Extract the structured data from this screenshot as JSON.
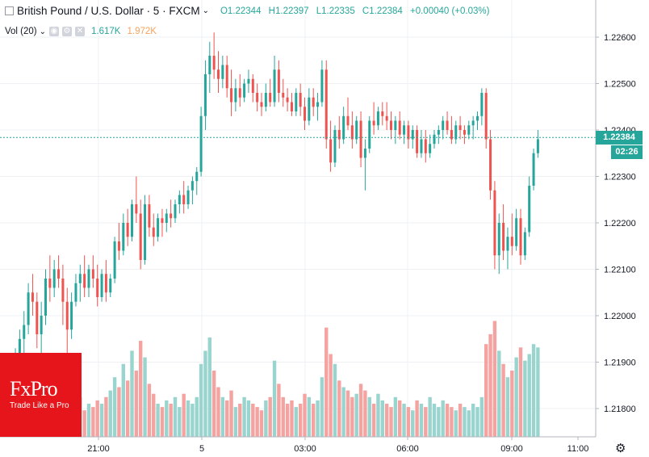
{
  "header": {
    "symbol": "British Pound / U.S. Dollar · 5 · FXCM",
    "open": "O1.22344",
    "high": "H1.22397",
    "low": "L1.22335",
    "close": "C1.22384",
    "change": "+0.00040 (+0.03%)"
  },
  "volume_legend": {
    "label": "Vol (20)",
    "value1": "1.617K",
    "value2": "1.972K"
  },
  "logo": {
    "name": "FxPro",
    "tagline": "Trade Like a Pro"
  },
  "price_marker": {
    "price": "1.22384",
    "countdown": "02:26"
  },
  "colors": {
    "up": "#26a69a",
    "down": "#ef5350",
    "vol_up": "#9ad4ce",
    "vol_down": "#f5a3a1",
    "brand": "#e5151b"
  },
  "chart_data": {
    "type": "candlestick",
    "x_ticks": [
      "21:00",
      "5",
      "03:00",
      "06:00",
      "09:00",
      "11:00"
    ],
    "y_ticks": [
      "1.22600",
      "1.22500",
      "1.22400",
      "1.22300",
      "1.22200",
      "1.22100",
      "1.22000",
      "1.21900",
      "1.21800"
    ],
    "ylim": [
      1.2174,
      1.2263
    ],
    "last_price": 1.22384,
    "candles": [
      [
        1.2188,
        1.2191,
        1.2183,
        1.2186
      ],
      [
        1.2186,
        1.2188,
        1.2181,
        1.2183
      ],
      [
        1.2183,
        1.2187,
        1.2179,
        1.2185
      ],
      [
        1.2185,
        1.2193,
        1.2184,
        1.2191
      ],
      [
        1.2191,
        1.2197,
        1.2189,
        1.2195
      ],
      [
        1.2195,
        1.2201,
        1.2192,
        1.2198
      ],
      [
        1.2198,
        1.2207,
        1.2196,
        1.2205
      ],
      [
        1.2205,
        1.2209,
        1.22,
        1.2203
      ],
      [
        1.2203,
        1.2205,
        1.2193,
        1.2196
      ],
      [
        1.2196,
        1.2203,
        1.2192,
        1.22
      ],
      [
        1.22,
        1.221,
        1.2198,
        1.2208
      ],
      [
        1.2208,
        1.2213,
        1.2203,
        1.2206
      ],
      [
        1.2206,
        1.2212,
        1.2204,
        1.221
      ],
      [
        1.221,
        1.2213,
        1.2206,
        1.2208
      ],
      [
        1.2208,
        1.2211,
        1.2198,
        1.2203
      ],
      [
        1.2203,
        1.2206,
        1.2192,
        1.2197
      ],
      [
        1.2197,
        1.2205,
        1.2195,
        1.2203
      ],
      [
        1.2203,
        1.2209,
        1.2202,
        1.2207
      ],
      [
        1.2207,
        1.2211,
        1.2203,
        1.2209
      ],
      [
        1.2209,
        1.2213,
        1.2204,
        1.2206
      ],
      [
        1.2206,
        1.2211,
        1.2204,
        1.221
      ],
      [
        1.221,
        1.2213,
        1.2206,
        1.2208
      ],
      [
        1.2208,
        1.2211,
        1.2202,
        1.2204
      ],
      [
        1.2204,
        1.221,
        1.2203,
        1.2209
      ],
      [
        1.2209,
        1.2212,
        1.2203,
        1.2205
      ],
      [
        1.2205,
        1.2209,
        1.2204,
        1.2208
      ],
      [
        1.2208,
        1.2217,
        1.2207,
        1.2216
      ],
      [
        1.2216,
        1.222,
        1.2212,
        1.2214
      ],
      [
        1.2214,
        1.2222,
        1.2213,
        1.222
      ],
      [
        1.222,
        1.2223,
        1.2215,
        1.2217
      ],
      [
        1.2217,
        1.2225,
        1.2216,
        1.2224
      ],
      [
        1.2224,
        1.223,
        1.222,
        1.2222
      ],
      [
        1.2222,
        1.2225,
        1.221,
        1.2212
      ],
      [
        1.2212,
        1.2226,
        1.2211,
        1.2224
      ],
      [
        1.2224,
        1.2226,
        1.2217,
        1.2219
      ],
      [
        1.2219,
        1.2222,
        1.2215,
        1.2217
      ],
      [
        1.2217,
        1.2222,
        1.2216,
        1.2221
      ],
      [
        1.2221,
        1.2223,
        1.2217,
        1.222
      ],
      [
        1.222,
        1.2223,
        1.2218,
        1.2222
      ],
      [
        1.2222,
        1.2225,
        1.2219,
        1.2221
      ],
      [
        1.2221,
        1.2225,
        1.222,
        1.2224
      ],
      [
        1.2224,
        1.2227,
        1.2222,
        1.2226
      ],
      [
        1.2226,
        1.2229,
        1.2222,
        1.2224
      ],
      [
        1.2224,
        1.2228,
        1.2223,
        1.2227
      ],
      [
        1.2227,
        1.223,
        1.2224,
        1.2229
      ],
      [
        1.2229,
        1.2232,
        1.2226,
        1.2231
      ],
      [
        1.2231,
        1.2245,
        1.223,
        1.2243
      ],
      [
        1.2243,
        1.2255,
        1.224,
        1.2252
      ],
      [
        1.2252,
        1.2259,
        1.2248,
        1.2256
      ],
      [
        1.2256,
        1.2261,
        1.2251,
        1.2253
      ],
      [
        1.2253,
        1.2257,
        1.2248,
        1.2251
      ],
      [
        1.2251,
        1.2256,
        1.2249,
        1.2254
      ],
      [
        1.2254,
        1.2256,
        1.2247,
        1.2249
      ],
      [
        1.2249,
        1.2253,
        1.2243,
        1.2246
      ],
      [
        1.2246,
        1.2251,
        1.2244,
        1.2249
      ],
      [
        1.2249,
        1.2252,
        1.2245,
        1.2247
      ],
      [
        1.2247,
        1.2251,
        1.2246,
        1.225
      ],
      [
        1.225,
        1.2253,
        1.2248,
        1.2251
      ],
      [
        1.2251,
        1.2252,
        1.2246,
        1.2248
      ],
      [
        1.2248,
        1.225,
        1.2244,
        1.2246
      ],
      [
        1.2246,
        1.2248,
        1.2243,
        1.2245
      ],
      [
        1.2245,
        1.225,
        1.2244,
        1.2248
      ],
      [
        1.2248,
        1.2251,
        1.2245,
        1.2246
      ],
      [
        1.2246,
        1.2256,
        1.2245,
        1.2253
      ],
      [
        1.2253,
        1.2255,
        1.2246,
        1.2248
      ],
      [
        1.2248,
        1.2251,
        1.2245,
        1.2247
      ],
      [
        1.2247,
        1.2249,
        1.2244,
        1.2246
      ],
      [
        1.2246,
        1.2248,
        1.2243,
        1.2244
      ],
      [
        1.2244,
        1.2249,
        1.2243,
        1.2248
      ],
      [
        1.2248,
        1.225,
        1.2243,
        1.2245
      ],
      [
        1.2245,
        1.2247,
        1.224,
        1.2242
      ],
      [
        1.2242,
        1.2249,
        1.2241,
        1.2247
      ],
      [
        1.2247,
        1.2249,
        1.2243,
        1.2245
      ],
      [
        1.2245,
        1.2248,
        1.2242,
        1.2246
      ],
      [
        1.2246,
        1.2255,
        1.2245,
        1.2253
      ],
      [
        1.2253,
        1.2255,
        1.2236,
        1.2238
      ],
      [
        1.2238,
        1.2242,
        1.2231,
        1.2233
      ],
      [
        1.2233,
        1.2241,
        1.2232,
        1.224
      ],
      [
        1.224,
        1.2243,
        1.2236,
        1.2238
      ],
      [
        1.2238,
        1.2245,
        1.2237,
        1.2243
      ],
      [
        1.2243,
        1.2247,
        1.224,
        1.2241
      ],
      [
        1.2241,
        1.2244,
        1.2236,
        1.2238
      ],
      [
        1.2238,
        1.2243,
        1.2237,
        1.2242
      ],
      [
        1.2242,
        1.2244,
        1.2232,
        1.2234
      ],
      [
        1.2234,
        1.2238,
        1.2227,
        1.2236
      ],
      [
        1.2236,
        1.2243,
        1.2235,
        1.2242
      ],
      [
        1.2242,
        1.2246,
        1.2239,
        1.2241
      ],
      [
        1.2241,
        1.2245,
        1.224,
        1.2244
      ],
      [
        1.2244,
        1.2246,
        1.2241,
        1.2243
      ],
      [
        1.2243,
        1.2246,
        1.224,
        1.2242
      ],
      [
        1.2242,
        1.2244,
        1.2238,
        1.224
      ],
      [
        1.224,
        1.2243,
        1.2237,
        1.2242
      ],
      [
        1.2242,
        1.2244,
        1.2238,
        1.2239
      ],
      [
        1.2239,
        1.2242,
        1.2237,
        1.2241
      ],
      [
        1.2241,
        1.2242,
        1.2236,
        1.2238
      ],
      [
        1.2238,
        1.2241,
        1.2236,
        1.224
      ],
      [
        1.224,
        1.2241,
        1.2234,
        1.2235
      ],
      [
        1.2235,
        1.224,
        1.2234,
        1.2238
      ],
      [
        1.2238,
        1.224,
        1.2233,
        1.2235
      ],
      [
        1.2235,
        1.2239,
        1.2234,
        1.2237
      ],
      [
        1.2237,
        1.224,
        1.2236,
        1.2239
      ],
      [
        1.2239,
        1.2241,
        1.2237,
        1.224
      ],
      [
        1.224,
        1.2243,
        1.2238,
        1.2242
      ],
      [
        1.2242,
        1.2244,
        1.2239,
        1.224
      ],
      [
        1.224,
        1.2243,
        1.2237,
        1.2238
      ],
      [
        1.2238,
        1.2242,
        1.2237,
        1.2241
      ],
      [
        1.2241,
        1.2243,
        1.2238,
        1.224
      ],
      [
        1.224,
        1.2241,
        1.2237,
        1.2239
      ],
      [
        1.2239,
        1.2242,
        1.2238,
        1.2241
      ],
      [
        1.2241,
        1.2243,
        1.2238,
        1.2242
      ],
      [
        1.2242,
        1.2244,
        1.224,
        1.2243
      ],
      [
        1.2243,
        1.2249,
        1.2241,
        1.2248
      ],
      [
        1.2248,
        1.2249,
        1.2236,
        1.2238
      ],
      [
        1.2238,
        1.224,
        1.2225,
        1.2227
      ],
      [
        1.2227,
        1.2229,
        1.221,
        1.2213
      ],
      [
        1.2213,
        1.2222,
        1.2209,
        1.222
      ],
      [
        1.222,
        1.2224,
        1.2212,
        1.2214
      ],
      [
        1.2214,
        1.2219,
        1.221,
        1.2217
      ],
      [
        1.2217,
        1.2222,
        1.2213,
        1.2215
      ],
      [
        1.2215,
        1.2223,
        1.2214,
        1.2221
      ],
      [
        1.2221,
        1.2223,
        1.2211,
        1.2213
      ],
      [
        1.2213,
        1.2219,
        1.2212,
        1.2218
      ],
      [
        1.2218,
        1.223,
        1.2217,
        1.2228
      ],
      [
        1.2228,
        1.2236,
        1.2227,
        1.2235
      ],
      [
        1.2235,
        1.224,
        1.2234,
        1.2238
      ]
    ],
    "volumes": [
      [
        11,
        0
      ],
      [
        9,
        1
      ],
      [
        8,
        0
      ],
      [
        10,
        1
      ],
      [
        12,
        1
      ],
      [
        9,
        0
      ],
      [
        13,
        1
      ],
      [
        8,
        0
      ],
      [
        14,
        0
      ],
      [
        11,
        1
      ],
      [
        12,
        1
      ],
      [
        10,
        0
      ],
      [
        9,
        1
      ],
      [
        11,
        0
      ],
      [
        13,
        0
      ],
      [
        12,
        0
      ],
      [
        10,
        1
      ],
      [
        9,
        1
      ],
      [
        12,
        1
      ],
      [
        8,
        0
      ],
      [
        10,
        1
      ],
      [
        9,
        0
      ],
      [
        11,
        0
      ],
      [
        10,
        1
      ],
      [
        12,
        0
      ],
      [
        14,
        1
      ],
      [
        18,
        1
      ],
      [
        15,
        0
      ],
      [
        22,
        1
      ],
      [
        17,
        0
      ],
      [
        26,
        1
      ],
      [
        20,
        0
      ],
      [
        29,
        0
      ],
      [
        24,
        1
      ],
      [
        16,
        0
      ],
      [
        13,
        0
      ],
      [
        10,
        1
      ],
      [
        9,
        0
      ],
      [
        11,
        1
      ],
      [
        10,
        0
      ],
      [
        12,
        1
      ],
      [
        9,
        1
      ],
      [
        13,
        0
      ],
      [
        11,
        1
      ],
      [
        10,
        1
      ],
      [
        12,
        1
      ],
      [
        22,
        1
      ],
      [
        26,
        1
      ],
      [
        30,
        1
      ],
      [
        20,
        0
      ],
      [
        15,
        0
      ],
      [
        12,
        1
      ],
      [
        11,
        0
      ],
      [
        14,
        0
      ],
      [
        9,
        1
      ],
      [
        10,
        0
      ],
      [
        12,
        1
      ],
      [
        11,
        1
      ],
      [
        10,
        0
      ],
      [
        9,
        0
      ],
      [
        8,
        0
      ],
      [
        11,
        1
      ],
      [
        12,
        0
      ],
      [
        23,
        1
      ],
      [
        16,
        0
      ],
      [
        12,
        0
      ],
      [
        10,
        0
      ],
      [
        11,
        0
      ],
      [
        9,
        1
      ],
      [
        10,
        0
      ],
      [
        13,
        0
      ],
      [
        12,
        1
      ],
      [
        10,
        0
      ],
      [
        11,
        1
      ],
      [
        18,
        1
      ],
      [
        33,
        0
      ],
      [
        25,
        0
      ],
      [
        22,
        1
      ],
      [
        17,
        0
      ],
      [
        15,
        1
      ],
      [
        14,
        0
      ],
      [
        12,
        0
      ],
      [
        13,
        1
      ],
      [
        16,
        0
      ],
      [
        14,
        0
      ],
      [
        12,
        1
      ],
      [
        10,
        0
      ],
      [
        13,
        1
      ],
      [
        11,
        1
      ],
      [
        10,
        0
      ],
      [
        9,
        0
      ],
      [
        12,
        1
      ],
      [
        11,
        0
      ],
      [
        10,
        1
      ],
      [
        9,
        0
      ],
      [
        8,
        1
      ],
      [
        11,
        0
      ],
      [
        10,
        1
      ],
      [
        9,
        0
      ],
      [
        12,
        1
      ],
      [
        10,
        1
      ],
      [
        9,
        1
      ],
      [
        11,
        1
      ],
      [
        10,
        0
      ],
      [
        9,
        0
      ],
      [
        8,
        1
      ],
      [
        10,
        0
      ],
      [
        9,
        1
      ],
      [
        8,
        1
      ],
      [
        10,
        1
      ],
      [
        9,
        1
      ],
      [
        12,
        1
      ],
      [
        28,
        0
      ],
      [
        31,
        0
      ],
      [
        35,
        0
      ],
      [
        26,
        1
      ],
      [
        22,
        0
      ],
      [
        18,
        1
      ],
      [
        20,
        0
      ],
      [
        24,
        1
      ],
      [
        27,
        0
      ],
      [
        23,
        1
      ],
      [
        25,
        1
      ],
      [
        28,
        1
      ],
      [
        27,
        1
      ]
    ]
  }
}
